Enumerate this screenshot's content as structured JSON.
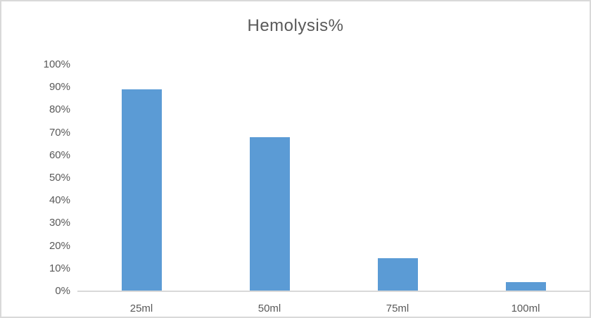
{
  "chart_data": {
    "type": "bar",
    "title": "Hemolysis%",
    "categories": [
      "25ml",
      "50ml",
      "75ml",
      "100ml"
    ],
    "values": [
      89,
      68,
      14.5,
      4
    ],
    "xlabel": "",
    "ylabel": "",
    "ylim": [
      0,
      100
    ],
    "ytick_step": 10,
    "ytick_suffix": "%",
    "grid": false,
    "legend": false,
    "colors": {
      "bar": "#5b9bd5",
      "axis_line": "#d9d9d9",
      "text": "#595959",
      "frame_border": "#d9d9d9",
      "background": "#ffffff"
    }
  }
}
